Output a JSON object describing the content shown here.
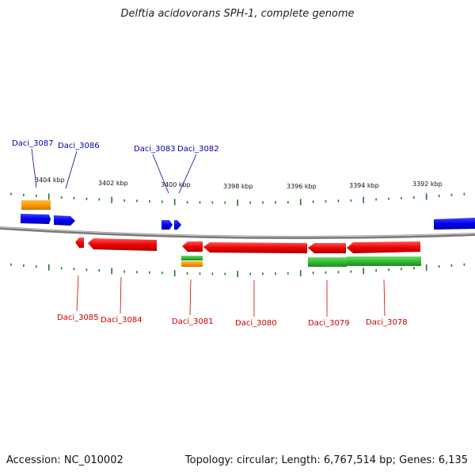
{
  "title": "Delftia acidovorans SPH-1, complete genome",
  "footer": {
    "accession": "Accession: NC_010002",
    "summary": "Topology: circular; Length: 6,767,514 bp; Genes: 6,135"
  },
  "colors": {
    "forward_cds": "#0000ee",
    "reverse_cds": "#ee0000",
    "rna_green": "#33bb33",
    "orange_feature": "#ff9900",
    "scale_ticks": "#227722",
    "backbone": "#888888",
    "forward_label": "#0000aa",
    "reverse_label": "#cc0000"
  },
  "scale": {
    "unit": "kbp",
    "labels": [
      "3404 kbp",
      "3402 kbp",
      "3400 kbp",
      "3398 kbp",
      "3396 kbp",
      "3394 kbp",
      "3392 kbp"
    ]
  },
  "genes_top": [
    {
      "label": "Daci_3087"
    },
    {
      "label": "Daci_3086"
    },
    {
      "label": "Daci_3083"
    },
    {
      "label": "Daci_3082"
    }
  ],
  "genes_bottom": [
    {
      "label": "Daci_3085"
    },
    {
      "label": "Daci_3084"
    },
    {
      "label": "Daci_3081"
    },
    {
      "label": "Daci_3080"
    },
    {
      "label": "Daci_3079"
    },
    {
      "label": "Daci_3078"
    }
  ]
}
